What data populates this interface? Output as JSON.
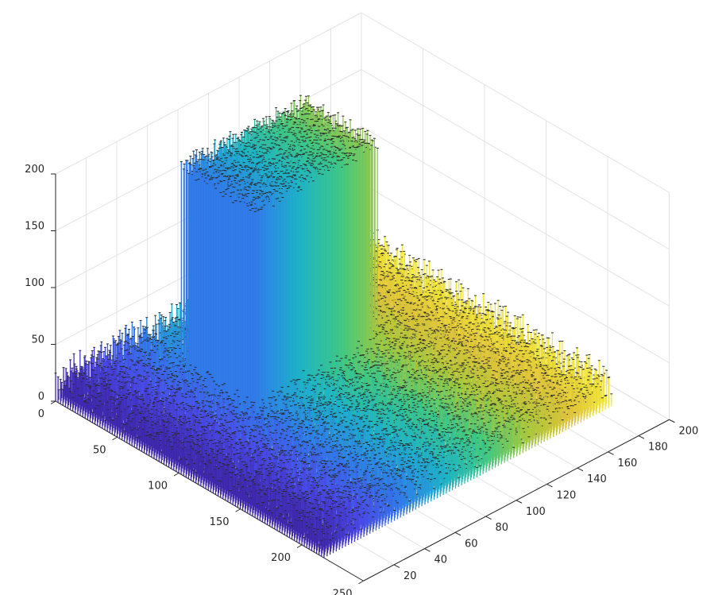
{
  "chart_data": {
    "type": "bar3",
    "title": "",
    "xlabel": "",
    "ylabel": "",
    "zlabel": "",
    "rows_axis": {
      "range": [
        0,
        250
      ],
      "ticks": [
        0,
        50,
        100,
        150,
        200,
        250
      ]
    },
    "cols_axis": {
      "range": [
        0,
        200
      ],
      "ticks": [
        20,
        40,
        60,
        80,
        100,
        120,
        140,
        160,
        180,
        200
      ]
    },
    "z_axis": {
      "range": [
        0,
        200
      ],
      "ticks": [
        0,
        50,
        100,
        150,
        200
      ]
    },
    "grid": true,
    "colormap": "parula-like",
    "colors": [
      "#3e26a8",
      "#4a49e8",
      "#2f7fe8",
      "#1db3c8",
      "#3fc882",
      "#a8c83c",
      "#e0c23a",
      "#f2ec3a"
    ],
    "data_description_values": {
      "surface_rows": 220,
      "surface_cols": 190,
      "background_height_mean": 20,
      "background_height_max": 35,
      "block_rows": [
        40,
        100
      ],
      "block_cols": [
        50,
        130
      ],
      "block_height_mean": 195,
      "block_height_max": 205
    }
  }
}
